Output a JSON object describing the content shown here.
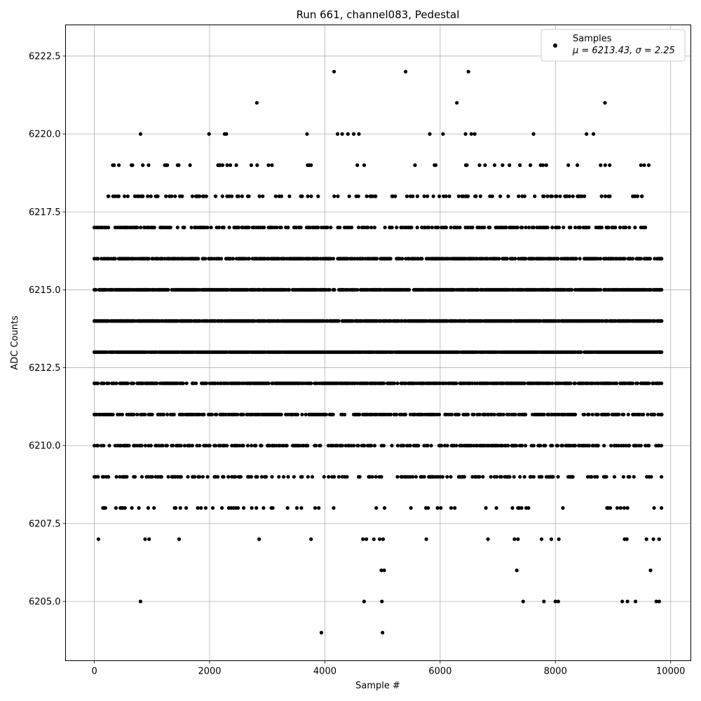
{
  "chart_data": {
    "type": "scatter",
    "title": "Run 661, channel083, Pedestal",
    "xlabel": "Sample #",
    "ylabel": "ADC Counts",
    "xlim": [
      -500,
      10350
    ],
    "ylim": [
      6203.1,
      6223.5
    ],
    "xticks": [
      0,
      2000,
      4000,
      6000,
      8000,
      10000
    ],
    "yticks": [
      6205.0,
      6207.5,
      6210.0,
      6212.5,
      6215.0,
      6217.5,
      6220.0,
      6222.5
    ],
    "xtick_labels": [
      "0",
      "2000",
      "4000",
      "6000",
      "8000",
      "10000"
    ],
    "ytick_labels": [
      "6205.0",
      "6207.5",
      "6210.0",
      "6212.5",
      "6215.0",
      "6217.5",
      "6220.0",
      "6222.5"
    ],
    "grid": true,
    "legend": {
      "placement": "top-right",
      "series_name": "Samples",
      "stats": "μ = 6213.43, σ = 2.25"
    },
    "series": [
      {
        "name": "Samples",
        "color": "#000000",
        "points": [
          [
            800,
            6205
          ],
          [
            4680,
            6205
          ],
          [
            4990,
            6205
          ],
          [
            7440,
            6205
          ],
          [
            7800,
            6205
          ],
          [
            8000,
            6205
          ],
          [
            8050,
            6205
          ],
          [
            9160,
            6205
          ],
          [
            9250,
            6205
          ],
          [
            9390,
            6205
          ],
          [
            9750,
            6205
          ],
          [
            9800,
            6205
          ],
          [
            3940,
            6204
          ],
          [
            5000,
            6204
          ],
          [
            4980,
            6206
          ],
          [
            5030,
            6206
          ],
          [
            7330,
            6206
          ],
          [
            9650,
            6206
          ],
          [
            70,
            6207
          ],
          [
            880,
            6207
          ],
          [
            950,
            6207
          ],
          [
            1470,
            6207
          ],
          [
            2860,
            6207
          ],
          [
            3760,
            6207
          ],
          [
            4660,
            6207
          ],
          [
            4720,
            6207
          ],
          [
            4850,
            6207
          ],
          [
            4950,
            6207
          ],
          [
            5010,
            6207
          ],
          [
            5760,
            6207
          ],
          [
            6830,
            6207
          ],
          [
            7290,
            6207
          ],
          [
            7350,
            6207
          ],
          [
            7760,
            6207
          ],
          [
            7930,
            6207
          ],
          [
            8060,
            6207
          ],
          [
            9200,
            6207
          ],
          [
            9240,
            6207
          ],
          [
            9580,
            6207
          ],
          [
            9700,
            6207
          ],
          [
            9800,
            6207
          ],
          [
            4160,
            6222
          ],
          [
            5400,
            6222
          ],
          [
            6490,
            6222
          ],
          [
            2820,
            6221
          ],
          [
            6290,
            6221
          ],
          [
            8860,
            6221
          ],
          [
            800,
            6220
          ],
          [
            1990,
            6220
          ],
          [
            2260,
            6220
          ],
          [
            2290,
            6220
          ],
          [
            3690,
            6220
          ],
          [
            4220,
            6220
          ],
          [
            4300,
            6220
          ],
          [
            4400,
            6220
          ],
          [
            4500,
            6220
          ],
          [
            4590,
            6220
          ],
          [
            5820,
            6220
          ],
          [
            6050,
            6220
          ],
          [
            6440,
            6220
          ],
          [
            6540,
            6220
          ],
          [
            6600,
            6220
          ],
          [
            7620,
            6220
          ],
          [
            8540,
            6220
          ],
          [
            8660,
            6220
          ]
        ],
        "band_rows": [
          {
            "y": 6208,
            "start": 150,
            "end": 9840,
            "density": 0.14
          },
          {
            "y": 6209,
            "start": 0,
            "end": 9840,
            "density": 0.32
          },
          {
            "y": 6210,
            "start": 0,
            "end": 9840,
            "density": 0.5
          },
          {
            "y": 6211,
            "start": 0,
            "end": 9840,
            "density": 0.62
          },
          {
            "y": 6212,
            "start": 0,
            "end": 9840,
            "density": 0.78
          },
          {
            "y": 6213,
            "start": 0,
            "end": 9840,
            "density": 0.95
          },
          {
            "y": 6214,
            "start": 0,
            "end": 9840,
            "density": 0.92
          },
          {
            "y": 6215,
            "start": 0,
            "end": 9840,
            "density": 0.85
          },
          {
            "y": 6216,
            "start": 0,
            "end": 9840,
            "density": 0.68
          },
          {
            "y": 6217,
            "start": 0,
            "end": 9560,
            "density": 0.5
          },
          {
            "y": 6218,
            "start": 240,
            "end": 9500,
            "density": 0.26
          },
          {
            "y": 6219,
            "start": 320,
            "end": 9620,
            "density": 0.1
          }
        ]
      }
    ]
  }
}
